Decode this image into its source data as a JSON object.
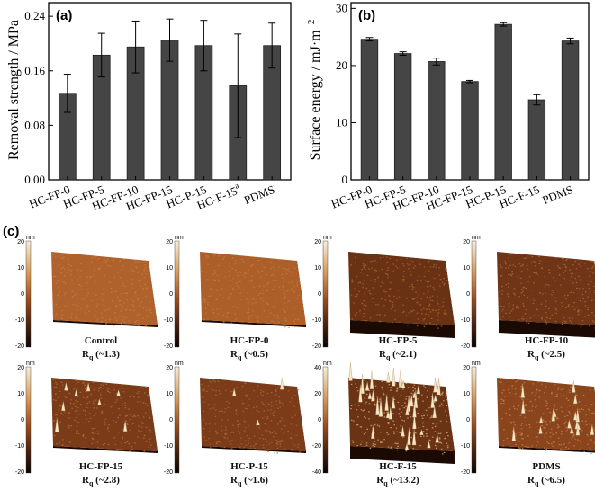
{
  "chart_data": [
    {
      "type": "bar",
      "panel": "(a)",
      "categories": [
        "HC-FP-0",
        "HC-FP-5",
        "HC-FP-10",
        "HC-FP-15",
        "HC-P-15",
        "HC-F-15",
        "PDMS"
      ],
      "category_superscripts": [
        "",
        "",
        "",
        "",
        "",
        "a",
        ""
      ],
      "values": [
        0.127,
        0.183,
        0.195,
        0.205,
        0.197,
        0.138,
        0.197
      ],
      "errors": [
        0.028,
        0.032,
        0.038,
        0.031,
        0.037,
        0.076,
        0.033
      ],
      "ylabel": "Removal strength / MPa",
      "ylim": [
        0,
        0.26
      ],
      "yticks": [
        "0.00",
        "0.08",
        "0.16",
        "0.24"
      ],
      "ytick_values": [
        0,
        0.08,
        0.16,
        0.24
      ]
    },
    {
      "type": "bar",
      "panel": "(b)",
      "categories": [
        "HC-FP-0",
        "HC-FP-5",
        "HC-FP-10",
        "HC-FP-15",
        "HC-P-15",
        "HC-F-15",
        "PDMS"
      ],
      "values": [
        24.6,
        22.1,
        20.7,
        17.2,
        27.2,
        14.0,
        24.3
      ],
      "errors": [
        0.3,
        0.3,
        0.6,
        0.2,
        0.3,
        0.9,
        0.5
      ],
      "ylabel": "Surface energy / mJ·m⁻²",
      "ylabel_main": "Surface energy / mJ·m",
      "ylabel_exp": "−2",
      "ylim": [
        0,
        31
      ],
      "yticks": [
        "0",
        "10",
        "20",
        "30"
      ],
      "ytick_values": [
        0,
        10,
        20,
        30
      ]
    }
  ],
  "afm": {
    "panel": "(c)",
    "unit": "nm",
    "roughness_symbol": "R",
    "roughness_subscript": "q",
    "images": [
      {
        "name": "Control",
        "rq": "(~1.3)",
        "scale_top": "20",
        "scale_mid": "0",
        "scale_bottom": "-20",
        "ticks": [
          "20",
          "10",
          "0",
          "-10",
          "-20"
        ],
        "color_dark": "#b0622d",
        "color_light": "#c7823f",
        "peaks": 0,
        "thick": 0
      },
      {
        "name": "HC-FP-0",
        "rq": "(~0.5)",
        "scale_top": "20",
        "scale_mid": "0",
        "scale_bottom": "-20",
        "ticks": [
          "20",
          "10",
          "0",
          "-10",
          "-20"
        ],
        "color_dark": "#ad5f2a",
        "color_light": "#c4803d",
        "peaks": 0,
        "thick": 0
      },
      {
        "name": "HC-FP-5",
        "rq": "(~2.1)",
        "scale_top": "20",
        "scale_mid": "0",
        "scale_bottom": "-20",
        "ticks": [
          "20",
          "10",
          "0",
          "-10",
          "-20"
        ],
        "color_dark": "#6a3214",
        "color_light": "#b06a32",
        "peaks": 0,
        "thick": 1
      },
      {
        "name": "HC-FP-10",
        "rq": "(~2.5)",
        "scale_top": "20",
        "scale_mid": "0",
        "scale_bottom": "-20",
        "ticks": [
          "20",
          "10",
          "0",
          "-10",
          "-20"
        ],
        "color_dark": "#6e3516",
        "color_light": "#b57038",
        "peaks": 0,
        "thick": 1
      },
      {
        "name": "HC-FP-15",
        "rq": "(~2.8)",
        "scale_top": "20",
        "scale_mid": "0",
        "scale_bottom": "-20",
        "ticks": [
          "20",
          "10",
          "0",
          "-10",
          "-20"
        ],
        "color_dark": "#7a3b18",
        "color_light": "#b9733a",
        "peaks": 8,
        "thick": 0
      },
      {
        "name": "HC-P-15",
        "rq": "(~1.6)",
        "scale_top": "20",
        "scale_mid": "0",
        "scale_bottom": "-20",
        "ticks": [
          "20",
          "10",
          "0",
          "-10",
          "-20"
        ],
        "color_dark": "#7c3c19",
        "color_light": "#b06b34",
        "peaks": 3,
        "thick": 0
      },
      {
        "name": "HC-F-15",
        "rq": "(~13.2)",
        "scale_top": "40",
        "scale_mid": "0",
        "scale_bottom": "-40",
        "ticks": [
          "40",
          "20",
          "0",
          "-20",
          "-40"
        ],
        "color_dark": "#6b3315",
        "color_light": "#d8b47a",
        "peaks": 40,
        "thick": 1
      },
      {
        "name": "PDMS",
        "rq": "(~6.5)",
        "scale_top": "20",
        "scale_mid": "0",
        "scale_bottom": "-20",
        "ticks": [
          "20",
          "10",
          "0",
          "-10",
          "-20"
        ],
        "color_dark": "#8a451d",
        "color_light": "#c98a4d",
        "peaks": 18,
        "thick": 0
      }
    ]
  }
}
